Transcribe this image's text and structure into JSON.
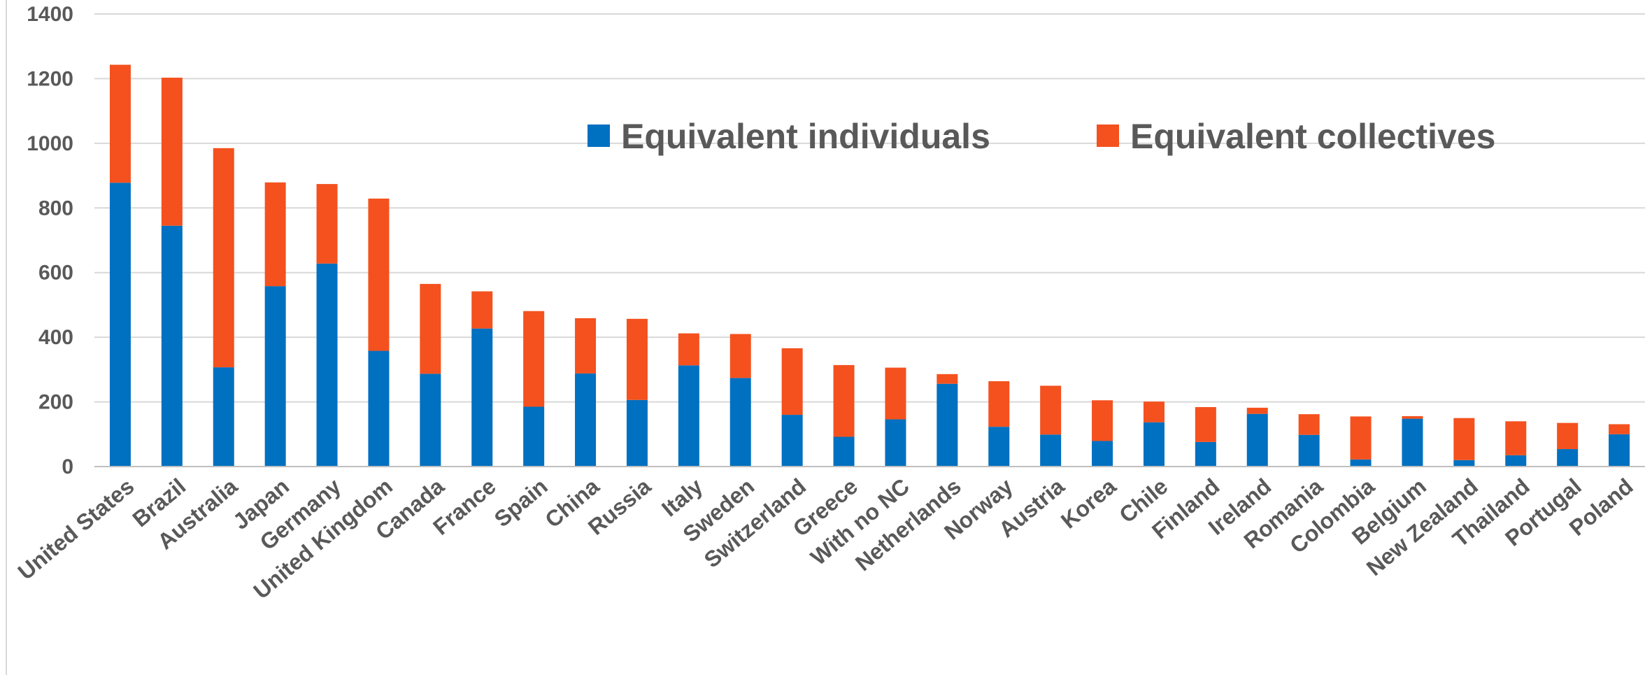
{
  "chart_data": {
    "type": "bar",
    "stacked": true,
    "categories": [
      "United States",
      "Brazil",
      "Australia",
      "Japan",
      "Germany",
      "United Kingdom",
      "Canada",
      "France",
      "Spain",
      "China",
      "Russia",
      "Italy",
      "Sweden",
      "Switzerland",
      "Greece",
      "With no NC",
      "Netherlands",
      "Norway",
      "Austria",
      "Korea",
      "Chile",
      "Finland",
      "Ireland",
      "Romania",
      "Colombia",
      "Belgium",
      "New Zealand",
      "Thailand",
      "Portugal",
      "Poland"
    ],
    "series": [
      {
        "name": "Equivalent individuals",
        "color": "#0070c0",
        "values": [
          878,
          745,
          307,
          558,
          628,
          358,
          287,
          427,
          185,
          288,
          206,
          313,
          274,
          160,
          92,
          146,
          256,
          123,
          99,
          79,
          137,
          76,
          163,
          98,
          22,
          148,
          20,
          35,
          54,
          100
        ]
      },
      {
        "name": "Equivalent collectives",
        "color": "#f4511e",
        "values": [
          365,
          458,
          678,
          321,
          246,
          471,
          278,
          115,
          296,
          171,
          251,
          99,
          136,
          206,
          222,
          160,
          30,
          141,
          151,
          126,
          64,
          108,
          19,
          64,
          133,
          8,
          130,
          105,
          81,
          31
        ]
      }
    ],
    "title": "",
    "xlabel": "",
    "ylabel": "",
    "ylim": [
      0,
      1400
    ],
    "yticks": [
      "0",
      "200",
      "400",
      "600",
      "800",
      "1000",
      "1200",
      "1400"
    ],
    "grid": true,
    "legend_position": "top-center"
  }
}
